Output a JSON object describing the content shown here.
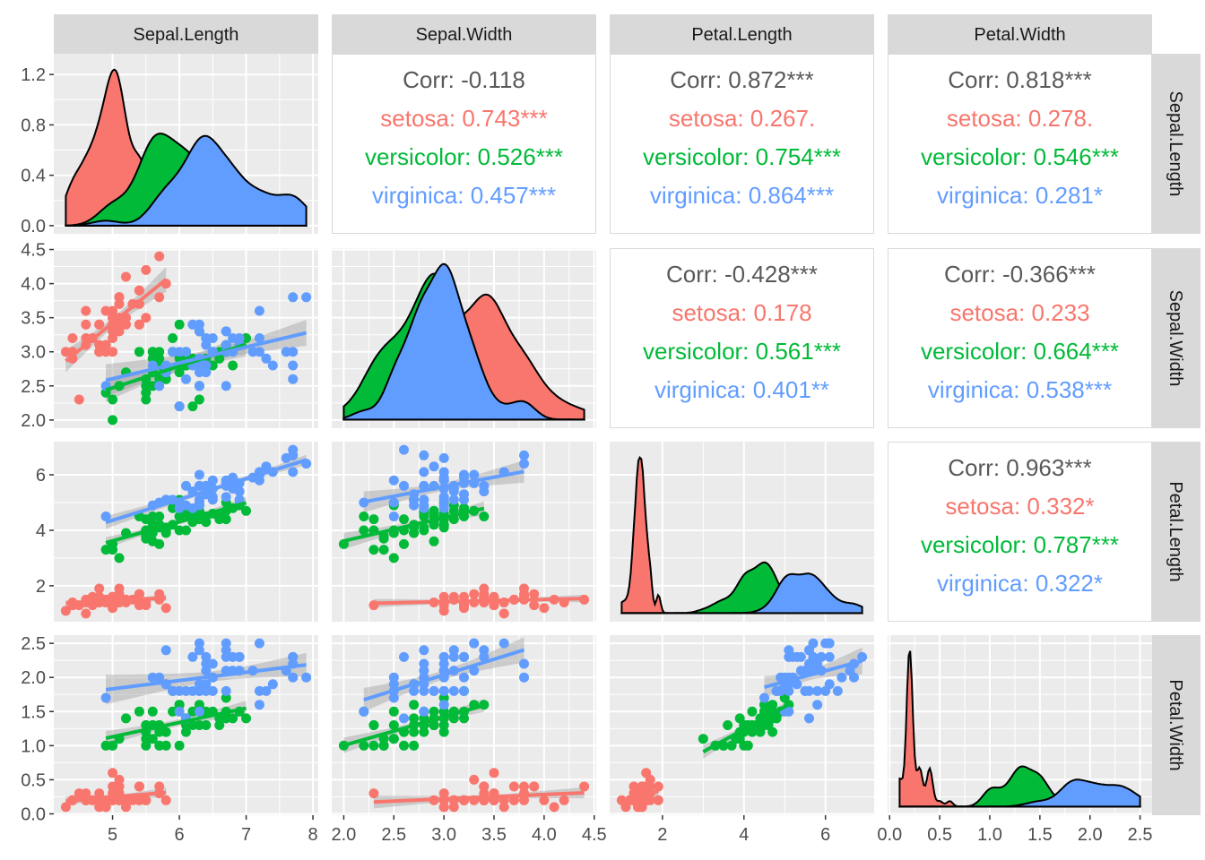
{
  "chart_data": {
    "type": "scatter-matrix",
    "variables": [
      "Sepal.Length",
      "Sepal.Width",
      "Petal.Length",
      "Petal.Width"
    ],
    "species": [
      "setosa",
      "versicolor",
      "virginica"
    ],
    "colors": {
      "setosa": "#F8766D",
      "versicolor": "#00BA38",
      "virginica": "#619CFF",
      "corr_total": "#595959"
    },
    "axes": {
      "Sepal.Length": {
        "range": [
          4.3,
          7.9
        ],
        "ticks": [
          5,
          6,
          7,
          8
        ],
        "tick_labels": [
          "5",
          "6",
          "7",
          "8"
        ]
      },
      "Sepal.Width": {
        "range": [
          2.0,
          4.4
        ],
        "ticks": [
          2.0,
          2.5,
          3.0,
          3.5,
          4.0,
          4.5
        ],
        "tick_labels": [
          "2.0",
          "2.5",
          "3.0",
          "3.5",
          "4.0",
          "4.5"
        ]
      },
      "Petal.Length": {
        "range": [
          1.0,
          6.9
        ],
        "ticks": [
          2,
          4,
          6
        ],
        "tick_labels": [
          "2",
          "4",
          "6"
        ]
      },
      "Petal.Width": {
        "range": [
          0.1,
          2.5
        ],
        "ticks": [
          0.0,
          0.5,
          1.0,
          1.5,
          2.0,
          2.5
        ],
        "tick_labels": [
          "0.0",
          "0.5",
          "1.0",
          "1.5",
          "2.0",
          "2.5"
        ]
      }
    },
    "density_axis": {
      "range": [
        0,
        1.3
      ],
      "ticks": [
        0.0,
        0.4,
        0.8,
        1.2
      ],
      "tick_labels": [
        "0.0",
        "0.4",
        "0.8",
        "1.2"
      ]
    },
    "correlations": [
      {
        "row": "Sepal.Length",
        "col": "Sepal.Width",
        "lines": [
          "Corr: -0.118",
          "setosa: 0.743***",
          "versicolor: 0.526***",
          "virginica: 0.457***"
        ]
      },
      {
        "row": "Sepal.Length",
        "col": "Petal.Length",
        "lines": [
          "Corr: 0.872***",
          "setosa: 0.267.",
          "versicolor: 0.754***",
          "virginica: 0.864***"
        ]
      },
      {
        "row": "Sepal.Length",
        "col": "Petal.Width",
        "lines": [
          "Corr: 0.818***",
          "setosa: 0.278.",
          "versicolor: 0.546***",
          "virginica: 0.281*"
        ]
      },
      {
        "row": "Sepal.Width",
        "col": "Petal.Length",
        "lines": [
          "Corr: -0.428***",
          "setosa: 0.178",
          "versicolor: 0.561***",
          "virginica: 0.401**"
        ]
      },
      {
        "row": "Sepal.Width",
        "col": "Petal.Width",
        "lines": [
          "Corr: -0.366***",
          "setosa: 0.233",
          "versicolor: 0.664***",
          "virginica: 0.538***"
        ]
      },
      {
        "row": "Petal.Length",
        "col": "Petal.Width",
        "lines": [
          "Corr: 0.963***",
          "setosa: 0.332*",
          "versicolor: 0.787***",
          "virginica: 0.322*"
        ]
      }
    ],
    "grid": true
  }
}
